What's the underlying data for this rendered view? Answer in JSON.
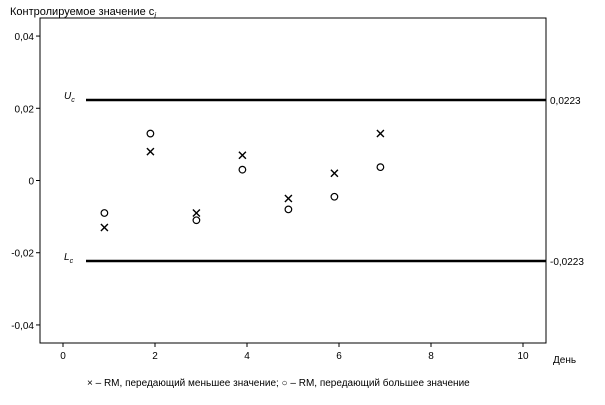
{
  "chart_data": {
    "type": "scatter",
    "title": "Контролируемое значение c",
    "title_subscript": "i",
    "xlabel": "День",
    "ylabel": "",
    "xlim": [
      -0.5,
      10.5
    ],
    "ylim": [
      -0.045,
      0.045
    ],
    "x_ticks": [
      0,
      2,
      4,
      6,
      8,
      10
    ],
    "x_tick_labels": [
      "0",
      "2",
      "4",
      "6",
      "8",
      "10"
    ],
    "y_ticks": [
      0.04,
      0.02,
      0,
      -0.02,
      -0.04
    ],
    "y_tick_labels": [
      "0,04",
      "0,02",
      "0",
      "-0,02",
      "-0,04"
    ],
    "grid": false,
    "legend_text": "× – RM, передающий меньшее значение; ○ – RM, передающий большее значение",
    "limits": [
      {
        "name": "U",
        "subscript": "c",
        "value": 0.0223,
        "value_label": "0,0223"
      },
      {
        "name": "L",
        "subscript": "c",
        "value": -0.0223,
        "value_label": "-0,0223"
      }
    ],
    "series": [
      {
        "marker": "x",
        "x": [
          0.9,
          1.9,
          2.9,
          3.9,
          4.9,
          5.9,
          6.9
        ],
        "y": [
          -0.013,
          0.008,
          -0.009,
          0.007,
          -0.005,
          0.002,
          0.013
        ]
      },
      {
        "marker": "o",
        "x": [
          0.9,
          1.9,
          2.9,
          3.9,
          4.9,
          5.9,
          6.9
        ],
        "y": [
          -0.009,
          0.013,
          -0.011,
          0.003,
          -0.008,
          -0.0045,
          0.0037
        ]
      }
    ]
  }
}
